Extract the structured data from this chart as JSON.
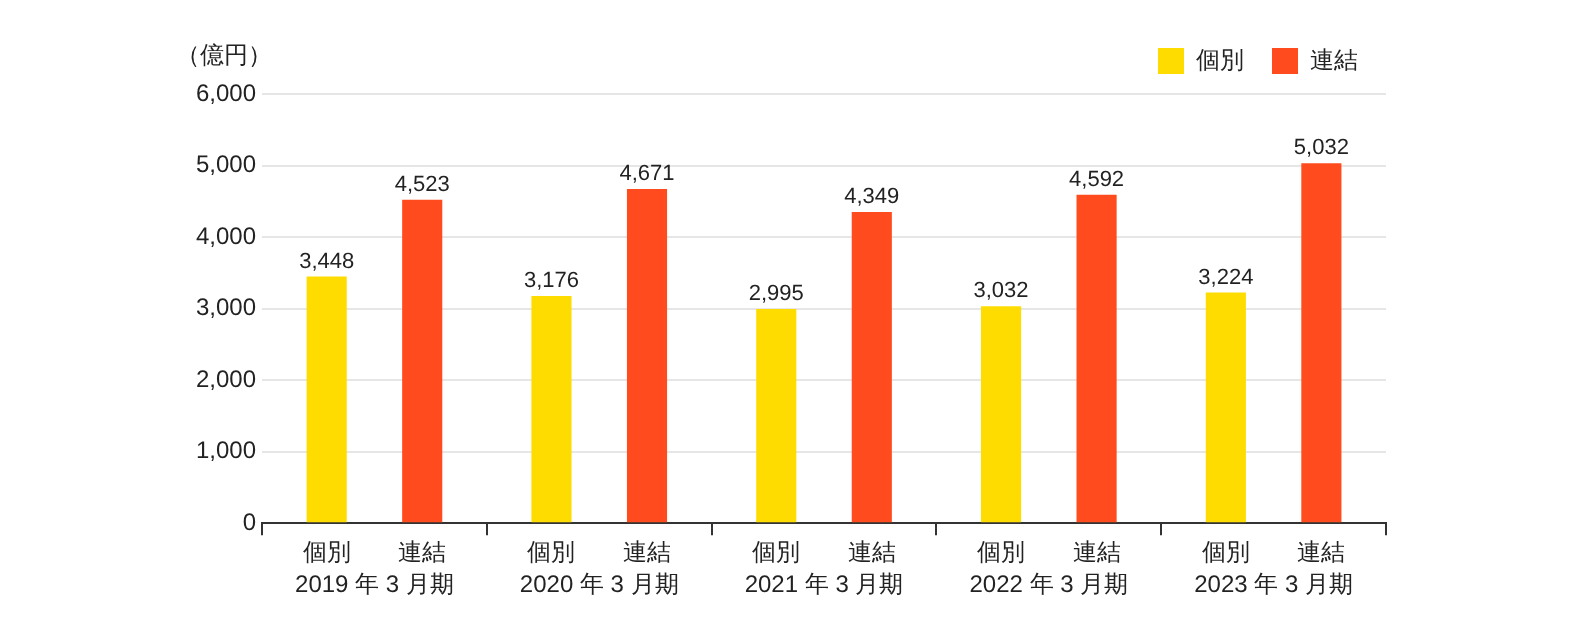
{
  "chart_data": {
    "type": "bar",
    "ylabel": "（億円）",
    "categories": [
      "2019 年 3 月期",
      "2020 年 3 月期",
      "2021 年 3 月期",
      "2022 年 3 月期",
      "2023 年 3 月期"
    ],
    "series": [
      {
        "name": "個別",
        "color": "#ffdc00",
        "values": [
          3448,
          3176,
          2995,
          3032,
          3224
        ],
        "value_labels": [
          "3,448",
          "3,176",
          "2,995",
          "3,032",
          "3,224"
        ]
      },
      {
        "name": "連結",
        "color": "#ff4b1e",
        "values": [
          4523,
          4671,
          4349,
          4592,
          5032
        ],
        "value_labels": [
          "4,523",
          "4,671",
          "4,349",
          "4,592",
          "5,032"
        ]
      }
    ],
    "ylim": [
      0,
      6000
    ],
    "yticks": [
      {
        "value": 0,
        "label": "0"
      },
      {
        "value": 1000,
        "label": "1,000"
      },
      {
        "value": 2000,
        "label": "2,000"
      },
      {
        "value": 3000,
        "label": "3,000"
      },
      {
        "value": 4000,
        "label": "4,000"
      },
      {
        "value": 5000,
        "label": "5,000"
      },
      {
        "value": 6000,
        "label": "6,000"
      }
    ],
    "grid": "y",
    "legend": "top right"
  }
}
